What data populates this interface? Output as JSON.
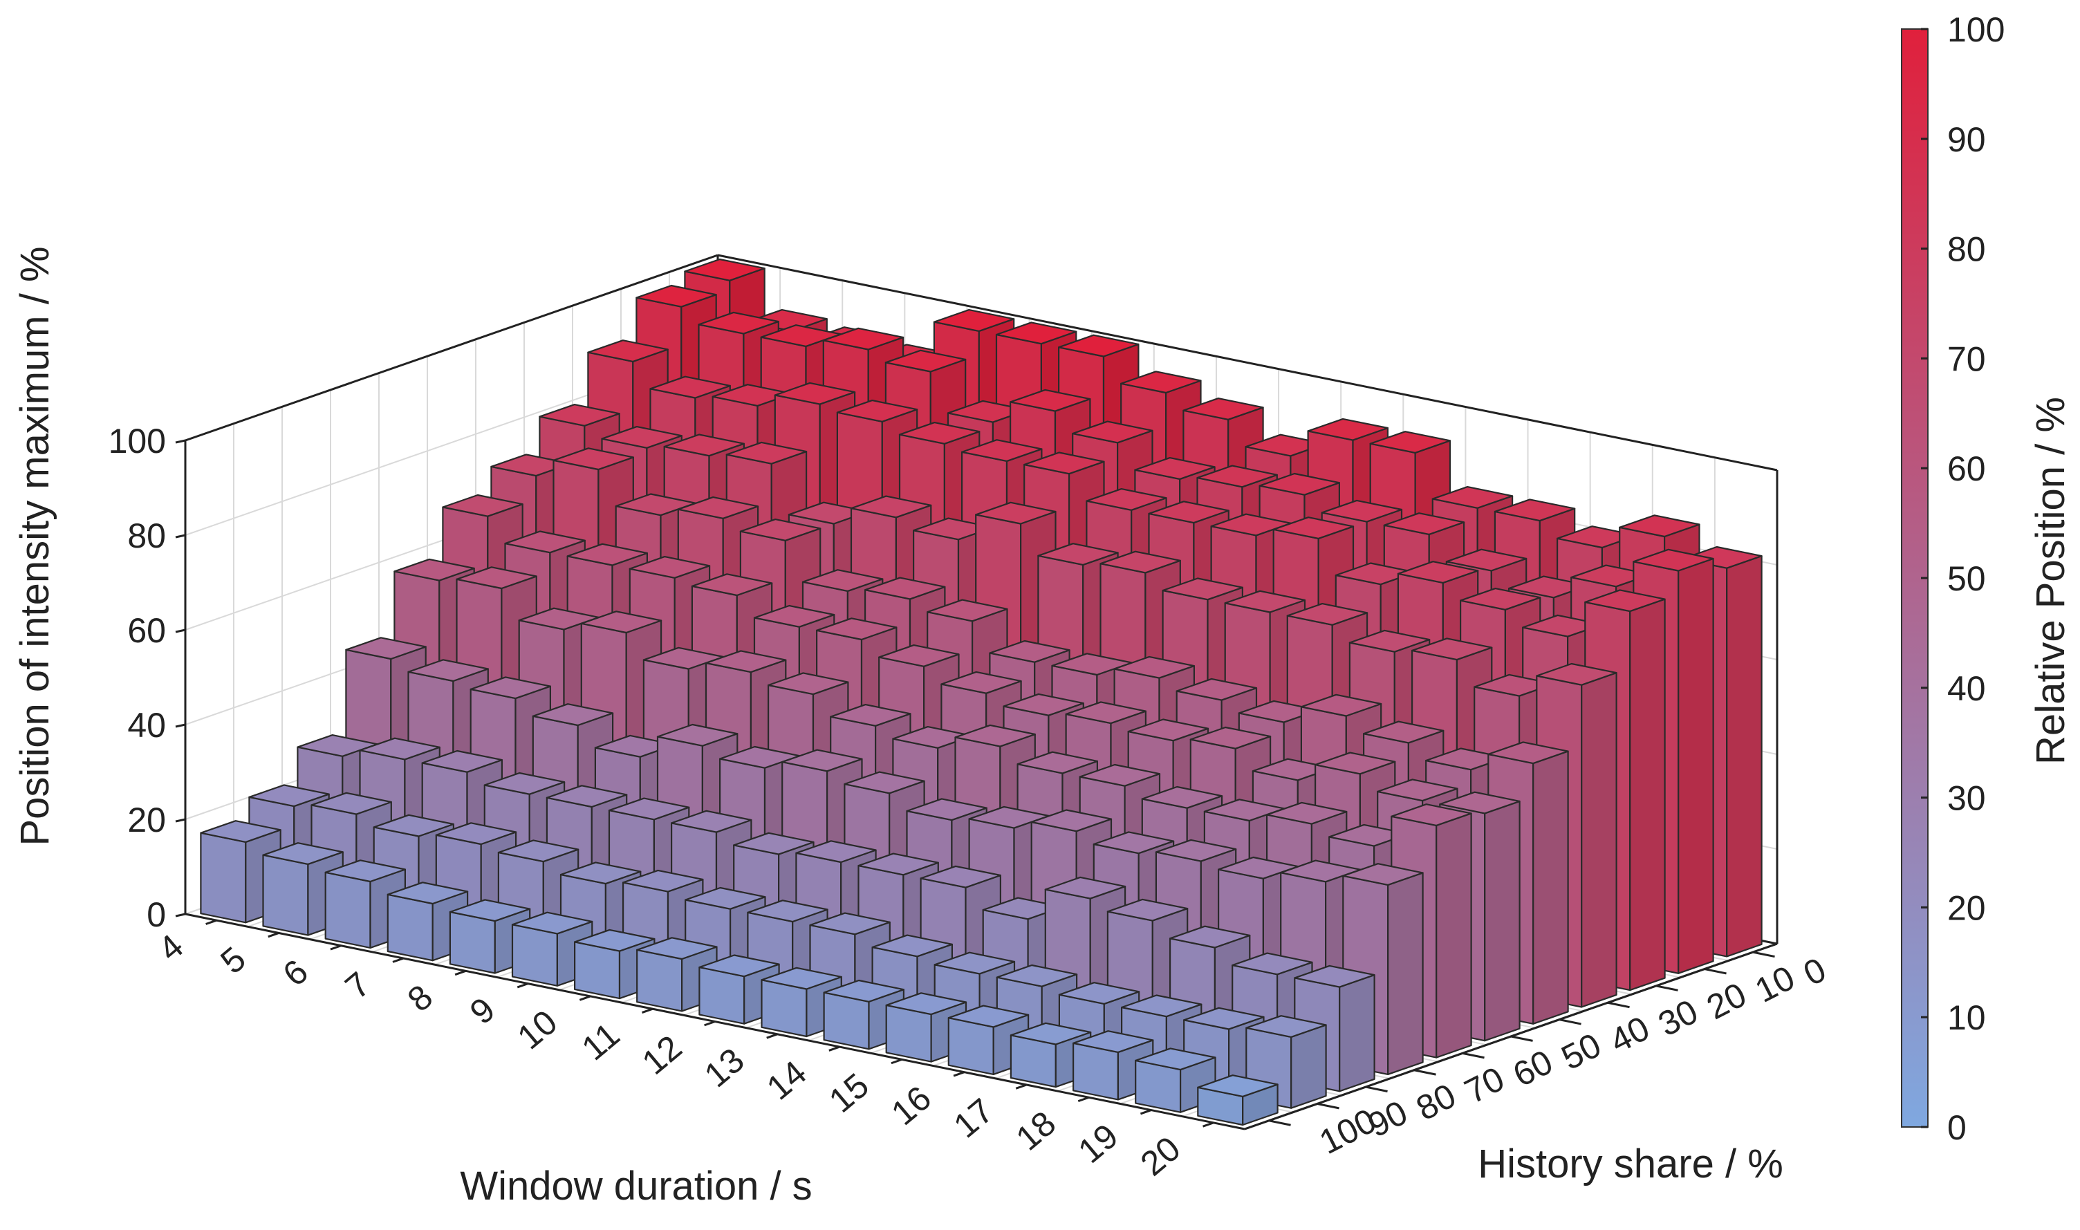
{
  "chart_data": {
    "type": "bar3d",
    "xlabel": "Window duration / s",
    "ylabel": "History share / %",
    "zlabel": "Position of intensity maximum / %",
    "colorbar_label": "Relative Position / %",
    "x_categories": [
      "4",
      "5",
      "6",
      "7",
      "8",
      "9",
      "10",
      "11",
      "12",
      "13",
      "14",
      "15",
      "16",
      "17",
      "18",
      "19",
      "20"
    ],
    "y_categories": [
      "0",
      "10",
      "20",
      "30",
      "40",
      "50",
      "60",
      "70",
      "80",
      "90",
      "100"
    ],
    "zlim": [
      0,
      100
    ],
    "z_ticks": [
      "0",
      "20",
      "40",
      "60",
      "80",
      "100"
    ],
    "colorbar_ticks": [
      "0",
      "10",
      "20",
      "30",
      "40",
      "50",
      "60",
      "70",
      "80",
      "90",
      "100"
    ],
    "colorbar_range": [
      0,
      100
    ],
    "grid": true,
    "colormap": {
      "low": "#7fa8e0",
      "high": "#e0203c"
    },
    "values": [
      [
        100,
        92,
        91,
        90,
        100,
        100,
        100,
        95,
        92,
        87,
        93,
        93,
        84,
        84,
        81,
        86,
        82
      ],
      [
        98,
        95,
        95,
        97,
        95,
        87,
        92,
        88,
        83,
        84,
        85,
        82,
        82,
        77,
        74,
        79,
        85
      ],
      [
        90,
        85,
        86,
        89,
        88,
        86,
        85,
        85,
        80,
        80,
        80,
        82,
        75,
        78,
        75,
        72,
        80
      ],
      [
        80,
        78,
        79,
        80,
        70,
        74,
        72,
        78,
        72,
        73,
        70,
        70,
        70,
        67,
        68,
        63,
        68
      ],
      [
        73,
        77,
        70,
        72,
        70,
        62,
        63,
        61,
        55,
        55,
        57,
        55,
        53,
        57,
        54,
        51,
        55
      ],
      [
        68,
        63,
        63,
        63,
        62,
        58,
        58,
        55,
        52,
        50,
        51,
        50,
        51,
        47,
        51,
        48,
        48
      ],
      [
        58,
        59,
        53,
        55,
        50,
        52,
        50,
        46,
        44,
        47,
        44,
        44,
        42,
        42,
        44,
        42,
        49
      ],
      [
        45,
        43,
        42,
        39,
        35,
        40,
        38,
        40,
        38,
        35,
        36,
        38,
        36,
        37,
        36,
        38,
        40
      ],
      [
        28,
        30,
        30,
        28,
        28,
        28,
        28,
        26,
        27,
        27,
        27,
        23,
        30,
        28,
        25,
        22,
        22
      ],
      [
        21,
        22,
        20,
        21,
        20,
        18,
        19,
        18,
        18,
        18,
        16,
        15,
        15,
        14,
        14,
        14,
        15
      ],
      [
        17,
        15,
        14,
        12,
        11,
        11,
        10,
        11,
        10,
        10,
        10,
        10,
        10,
        9,
        10,
        9,
        6
      ]
    ]
  }
}
